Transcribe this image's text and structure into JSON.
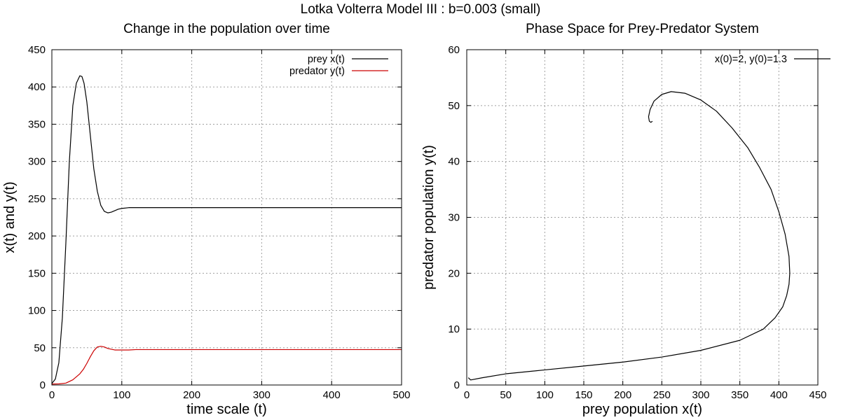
{
  "figure": {
    "suptitle": "Lotka Volterra Model III : b=0.003 (small)"
  },
  "chart_data": [
    {
      "type": "line",
      "title": "Change in the population over time",
      "xlabel": "time scale (t)",
      "ylabel": "x(t) and y(t)",
      "xlim": [
        0,
        500
      ],
      "ylim": [
        0,
        450
      ],
      "xticks": [
        0,
        100,
        200,
        300,
        400,
        500
      ],
      "yticks": [
        0,
        50,
        100,
        150,
        200,
        250,
        300,
        350,
        400,
        450
      ],
      "grid": true,
      "legend_position": "top-right",
      "series": [
        {
          "name": "prey x(t)",
          "color": "#000000",
          "x": [
            0,
            5,
            10,
            15,
            20,
            25,
            30,
            35,
            40,
            43,
            46,
            50,
            55,
            60,
            65,
            70,
            75,
            80,
            85,
            90,
            95,
            100,
            110,
            120,
            150,
            200,
            300,
            400,
            500
          ],
          "y": [
            2,
            8,
            30,
            90,
            190,
            300,
            375,
            405,
            415,
            414,
            405,
            380,
            335,
            290,
            260,
            241,
            233,
            231,
            232,
            234,
            236,
            237,
            238,
            238,
            238,
            238,
            238,
            238,
            238
          ]
        },
        {
          "name": "predator y(t)",
          "color": "#cc0000",
          "x": [
            0,
            10,
            20,
            30,
            40,
            45,
            50,
            55,
            60,
            65,
            70,
            75,
            80,
            85,
            90,
            95,
            100,
            110,
            120,
            150,
            200,
            300,
            400,
            500
          ],
          "y": [
            1.3,
            1.5,
            2.5,
            7,
            15,
            21,
            29,
            38,
            46,
            51,
            52,
            51,
            49,
            48,
            47,
            47,
            47,
            47,
            47.5,
            47.5,
            47.5,
            47.5,
            47.5,
            47.5
          ]
        }
      ]
    },
    {
      "type": "line",
      "title": "Phase Space for Prey-Predator System",
      "xlabel": "prey population x(t)",
      "ylabel": "predator population y(t)",
      "xlim": [
        0,
        450
      ],
      "ylim": [
        0,
        60
      ],
      "xticks": [
        0,
        50,
        100,
        150,
        200,
        250,
        300,
        350,
        400,
        450
      ],
      "yticks": [
        0,
        10,
        20,
        30,
        40,
        50,
        60
      ],
      "grid": true,
      "legend_position": "top-right",
      "series": [
        {
          "name": "x(0)=2, y(0)=1.3",
          "color": "#000000",
          "x": [
            2,
            5,
            20,
            50,
            100,
            150,
            200,
            250,
            300,
            350,
            380,
            395,
            405,
            410,
            413,
            414,
            413,
            408,
            400,
            390,
            375,
            360,
            340,
            320,
            300,
            280,
            262,
            250,
            240,
            235,
            233,
            234,
            236,
            238
          ],
          "y": [
            1.3,
            0.9,
            1.3,
            2.0,
            2.7,
            3.4,
            4.1,
            5.0,
            6.2,
            8.0,
            10.0,
            12.0,
            14.0,
            16.0,
            18.0,
            20.0,
            23.0,
            27.0,
            31.0,
            35.0,
            39.0,
            42.5,
            46.0,
            49.0,
            51.0,
            52.2,
            52.5,
            52.0,
            50.8,
            49.3,
            48.0,
            47.2,
            47.0,
            47.2
          ]
        }
      ]
    }
  ]
}
